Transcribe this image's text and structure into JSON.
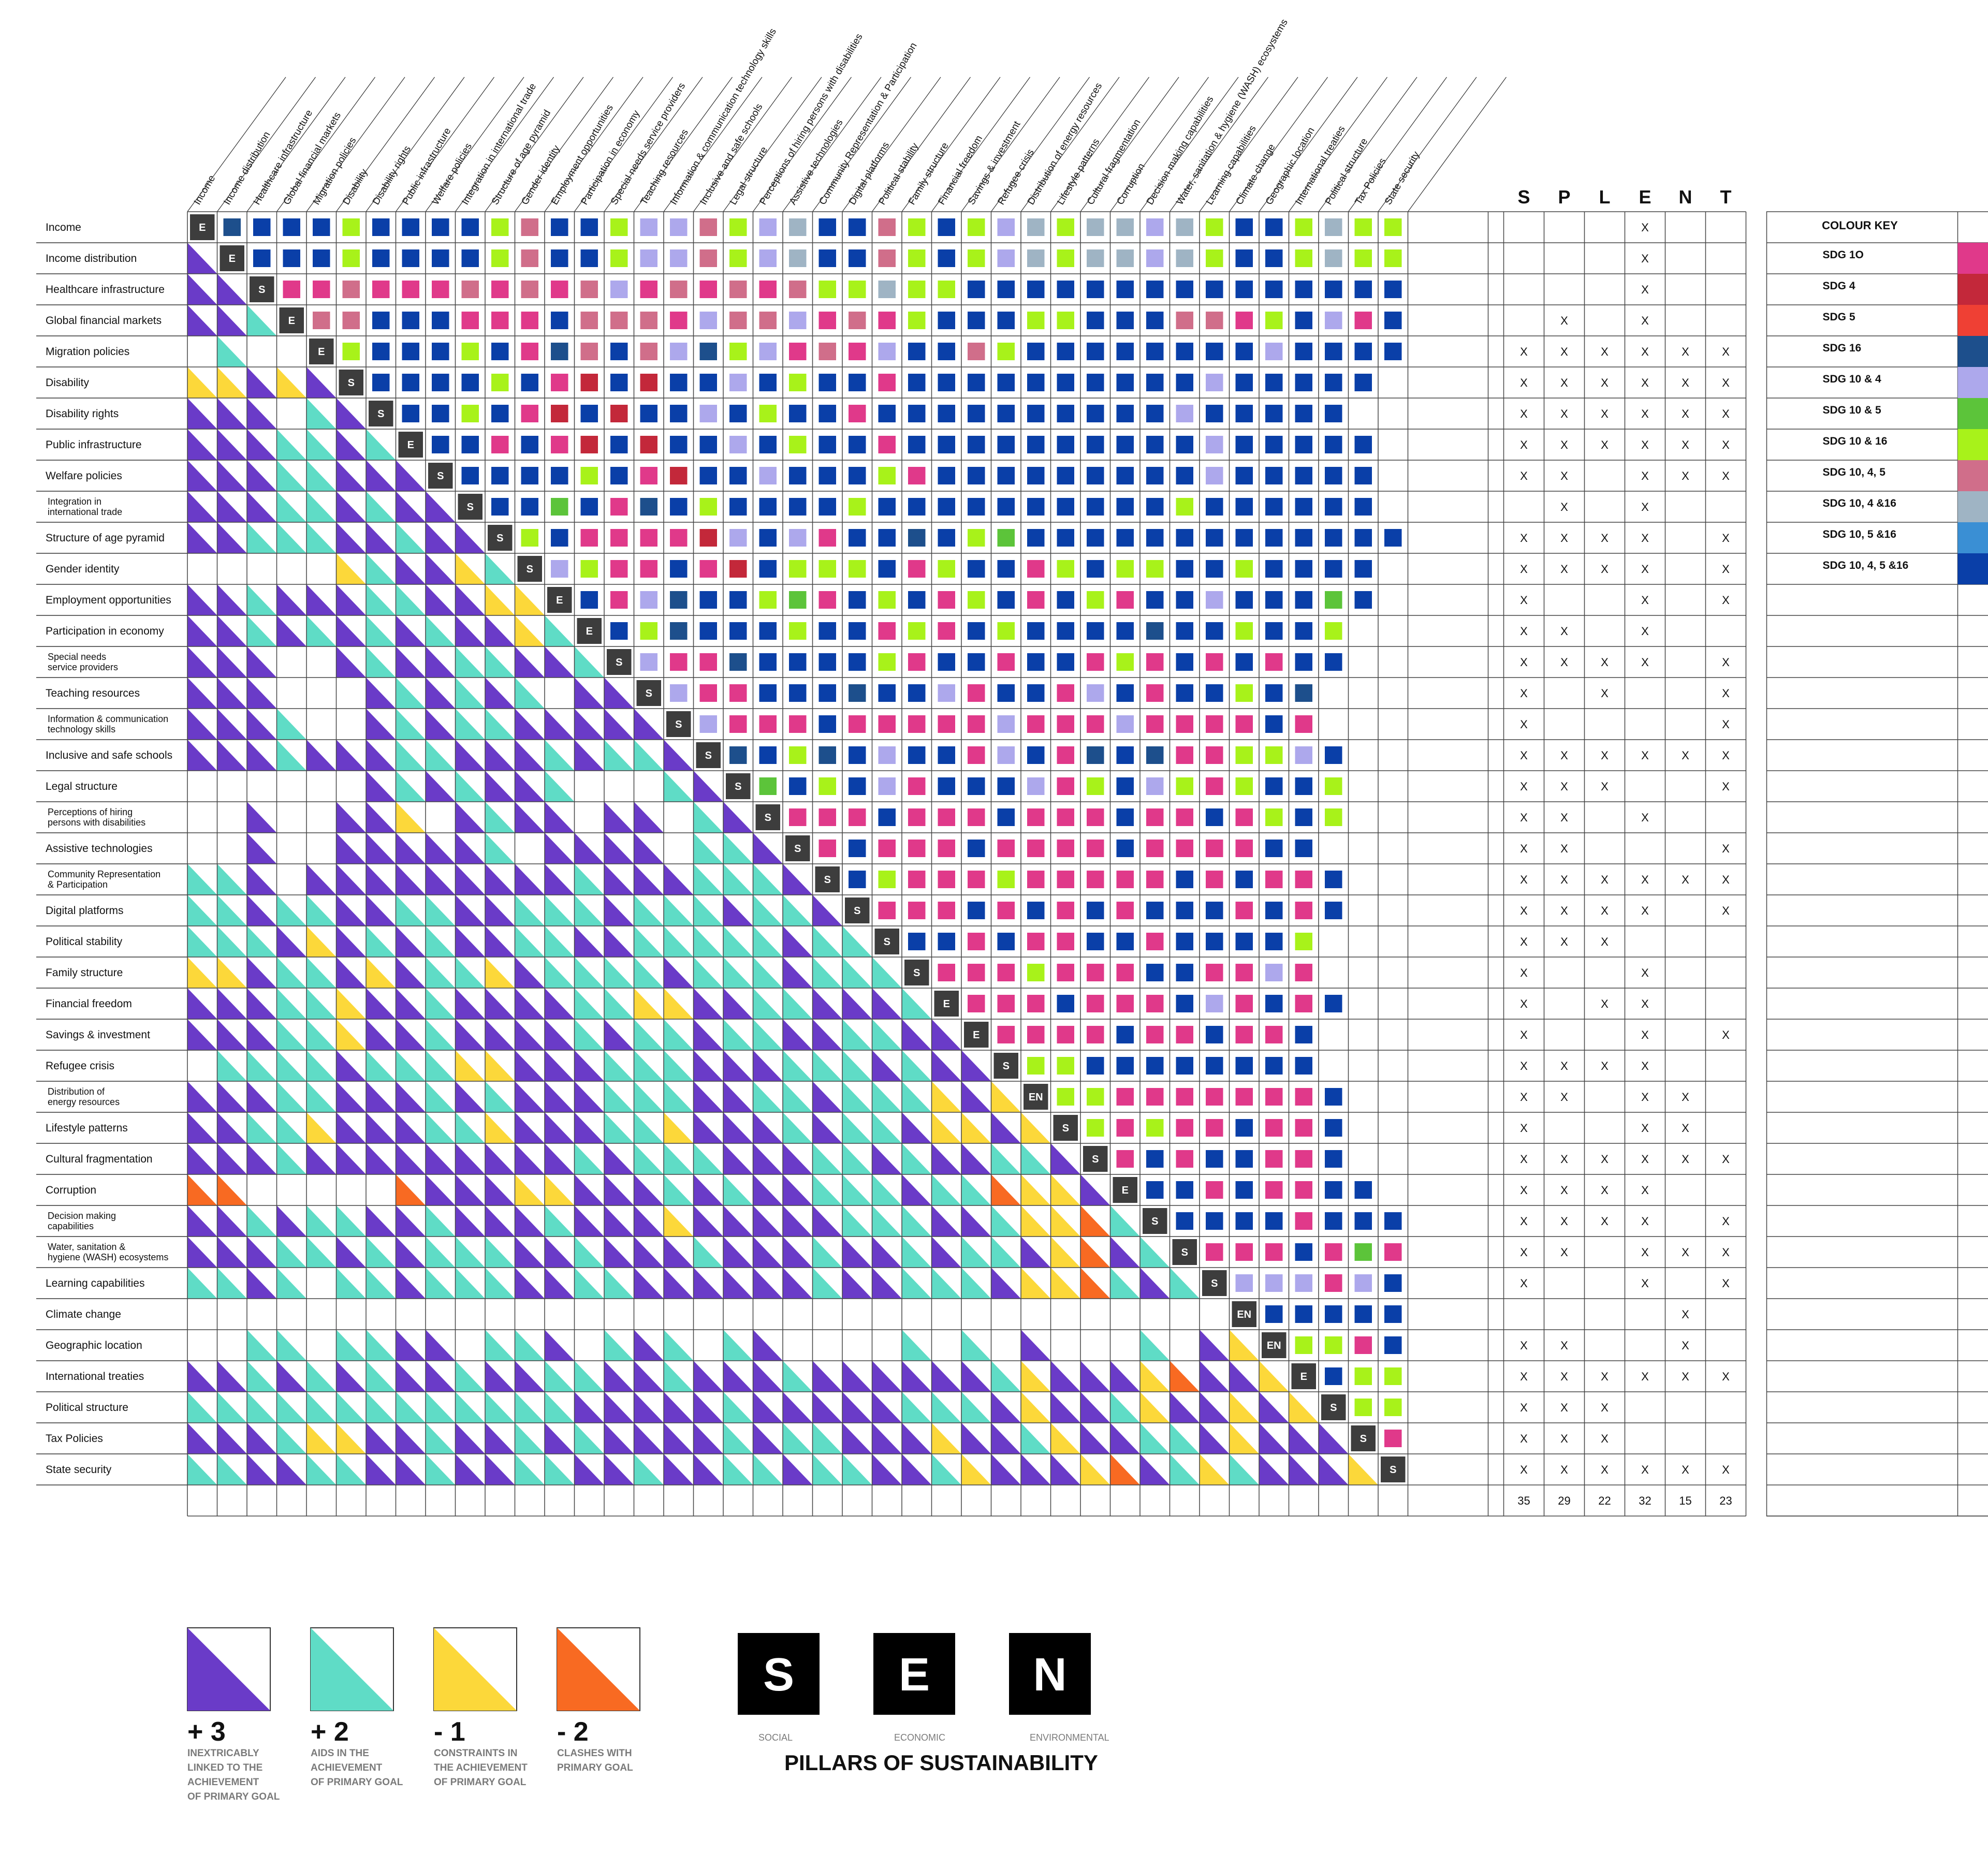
{
  "factors": [
    "Income",
    "Income distribution",
    "Healthcare infrastructure",
    "Global financial markets",
    "Migration policies",
    "Disability",
    "Disability rights",
    "Public infrastructure",
    "Welfare policies",
    "Integration in international trade",
    "Structure of age pyramid",
    "Gender identity",
    "Employment opportunities",
    "Participation in economy",
    "Special needs service providers",
    "Teaching resources",
    "Information & communication technology skills",
    "Inclusive and safe schools",
    "Legal structure",
    "Perceptions of hiring persons with disabilities",
    "Assistive technologies",
    "Community Representation & Participation",
    "Digital platforms",
    "Political stability",
    "Family structure",
    "Financial freedom",
    "Savings & investment",
    "Refugee crisis",
    "Distribution of energy resources",
    "Lifestyle patterns",
    "Cultural fragmentation",
    "Corruption",
    "Decision making capabilities",
    "Water, sanitation & hygiene (WASH) ecosystems",
    "Learning capabilities",
    "Climate change",
    "Geographic location",
    "International treaties",
    "Political structure",
    "Tax Policies",
    "State security"
  ],
  "pillars_per_factor": [
    "E",
    "E",
    "S",
    "E",
    "E",
    "S",
    "S",
    "E",
    "S",
    "S",
    "S",
    "S",
    "E",
    "E",
    "S",
    "S",
    "S",
    "S",
    "S",
    "S",
    "S",
    "S",
    "S",
    "S",
    "S",
    "E",
    "E",
    "S",
    "EN",
    "S",
    "S",
    "E",
    "S",
    "S",
    "S",
    "EN",
    "EN",
    "E",
    "S",
    "S",
    "S"
  ],
  "splent": {
    "headers": [
      "S",
      "P",
      "L",
      "E",
      "N",
      "T"
    ],
    "rows": [
      [
        "",
        "",
        "",
        "X",
        "",
        ""
      ],
      [
        "",
        "",
        "",
        "X",
        "",
        ""
      ],
      [
        "",
        "",
        "",
        "X",
        "",
        ""
      ],
      [
        "",
        "X",
        "",
        "X",
        "",
        ""
      ],
      [
        "X",
        "X",
        "X",
        "X",
        "X",
        "X"
      ],
      [
        "X",
        "X",
        "X",
        "X",
        "X",
        "X"
      ],
      [
        "X",
        "X",
        "X",
        "X",
        "X",
        "X"
      ],
      [
        "X",
        "X",
        "X",
        "X",
        "X",
        "X"
      ],
      [
        "X",
        "X",
        "",
        "X",
        "X",
        "X"
      ],
      [
        "",
        "X",
        "",
        "X",
        "",
        ""
      ],
      [
        "X",
        "X",
        "X",
        "X",
        "",
        "X"
      ],
      [
        "X",
        "X",
        "X",
        "X",
        "",
        "X"
      ],
      [
        "X",
        "",
        "",
        "X",
        "",
        "X"
      ],
      [
        "X",
        "X",
        "",
        "X",
        "",
        ""
      ],
      [
        "X",
        "X",
        "X",
        "X",
        "",
        "X"
      ],
      [
        "X",
        "",
        "X",
        "",
        "",
        "X"
      ],
      [
        "X",
        "",
        "",
        "",
        "",
        "X"
      ],
      [
        "X",
        "X",
        "X",
        "X",
        "X",
        "X"
      ],
      [
        "X",
        "X",
        "X",
        "",
        "",
        "X"
      ],
      [
        "X",
        "X",
        "",
        "X",
        "",
        ""
      ],
      [
        "X",
        "X",
        "",
        "",
        "",
        "X"
      ],
      [
        "X",
        "X",
        "X",
        "X",
        "X",
        "X"
      ],
      [
        "X",
        "X",
        "X",
        "X",
        "",
        "X"
      ],
      [
        "X",
        "X",
        "X",
        "",
        "",
        ""
      ],
      [
        "X",
        "",
        "",
        "X",
        "",
        ""
      ],
      [
        "X",
        "",
        "X",
        "X",
        "",
        ""
      ],
      [
        "X",
        "",
        "",
        "X",
        "",
        "X"
      ],
      [
        "X",
        "X",
        "X",
        "X",
        "",
        ""
      ],
      [
        "X",
        "X",
        "",
        "X",
        "X",
        ""
      ],
      [
        "X",
        "",
        "",
        "X",
        "X",
        ""
      ],
      [
        "X",
        "X",
        "X",
        "X",
        "X",
        "X"
      ],
      [
        "X",
        "X",
        "X",
        "X",
        "",
        ""
      ],
      [
        "X",
        "X",
        "X",
        "X",
        "",
        "X"
      ],
      [
        "X",
        "X",
        "",
        "X",
        "X",
        "X"
      ],
      [
        "X",
        "",
        "",
        "X",
        "",
        "X"
      ],
      [
        "",
        "",
        "",
        "",
        "X",
        ""
      ],
      [
        "X",
        "X",
        "",
        "",
        "X",
        ""
      ],
      [
        "X",
        "X",
        "X",
        "X",
        "X",
        "X"
      ],
      [
        "X",
        "X",
        "X",
        "",
        "",
        ""
      ],
      [
        "X",
        "X",
        "X",
        "",
        "",
        ""
      ],
      [
        "X",
        "X",
        "X",
        "X",
        "X",
        "X"
      ]
    ],
    "totals": [
      "35",
      "29",
      "22",
      "32",
      "15",
      "23"
    ]
  },
  "colour_key": {
    "title": "COLOUR KEY",
    "entries": [
      {
        "label": "SDG 1O",
        "color": "#e0398a"
      },
      {
        "label": "SDG 4",
        "color": "#c3283a"
      },
      {
        "label": "SDG 5",
        "color": "#ef4034"
      },
      {
        "label": "SDG 16",
        "color": "#1d4f8c"
      },
      {
        "label": "SDG 10 & 4",
        "color": "#ada8ec"
      },
      {
        "label": "SDG 10 & 5",
        "color": "#5cc43a"
      },
      {
        "label": "SDG 10 & 16",
        "color": "#a8f21a"
      },
      {
        "label": "SDG 10, 4, 5",
        "color": "#d06e8a"
      },
      {
        "label": "SDG 10, 4 &16",
        "color": "#9fb4c4"
      },
      {
        "label": "SDG 10, 5 &16",
        "color": "#3a8fd4"
      },
      {
        "label": "SDG 10, 4, 5 &16",
        "color": "#0a3fa8"
      }
    ]
  },
  "extra_colors": {
    "light_pink": "#f7c8dc",
    "pillar_box": "#3d3d3d"
  },
  "impact_legend": [
    {
      "value": "+ 3",
      "text": [
        "INEXTRICABLY",
        "LINKED TO THE",
        "ACHIEVEMENT",
        "OF PRIMARY GOAL"
      ],
      "color": "#6a3bc8"
    },
    {
      "value": "+ 2",
      "text": [
        "AIDS IN THE",
        "ACHIEVEMENT",
        "OF PRIMARY GOAL"
      ],
      "color": "#5fdcc6"
    },
    {
      "value": "- 1",
      "text": [
        "CONSTRAINTS IN",
        "THE  ACHIEVEMENT",
        "OF PRIMARY GOAL"
      ],
      "color": "#fcd83a"
    },
    {
      "value": "- 2",
      "text": [
        "CLASHES WITH",
        "PRIMARY GOAL"
      ],
      "color": "#f86a22"
    }
  ],
  "pillars_legend": {
    "title": "PILLARS OF SUSTAINABILITY",
    "items": [
      {
        "letter": "S",
        "label": "SOCIAL"
      },
      {
        "letter": "E",
        "label": "ECONOMIC"
      },
      {
        "letter": "N",
        "label": "ENVIRONMENTAL"
      }
    ]
  },
  "upper_matrix": [
    "KBBBGBBBBGPBBGLLPGLSBBPGBGLSGSSLSGBBGSGG",
    "BBBGBBBBGPBBGLLPGLSBBPGBGLSGSSLSGBBGSGG",
    "MMPMMMPMPMPLMPMPMPGGSGGBBBBBBBBBBBBBBB",
    "PPBBBMMMBPPPMLPPLMPMGBBBGGBBBPPMGBLMBBB",
    "GBBBGBMKPBPLKGLMPMLBBPGBBBBBBBBLBBBB",
    "BBBBGBMRBRBBLBGBBMBBBBBBBBBBLBBBBB",
    "BBGBMRBRBBLBGBBMBBBBBBBBBBLBBBBB",
    "BBMBMRBRBBLBGBBMBBBBBBBBBBLBBBBB",
    "BBBBGBMRBBLBBBGMBBBBBBBBBLBBBBB",
    "BBTBMKBGBBBBGBBBBBBBBBBGBBBBBB",
    "GBMMMMRLBLMBBKBGTBBBBBBBBBBBBB",
    "LGMMBMRBGGGBMGBBMGBGGBBGBBBB",
    "BMLKBBGTMBGBMGBMBGMBBLBBBTB",
    "BGKBBBGBBMGMBGBBBBKBBGBBG",
    "LMMKBBBBGMBBMBBMGMBMBMBB",
    "LMMBBBKBBLMBBMLBMBBGBK",
    "LMMMBMMMMMLMMMLMMMMBM",
    "KBGKBLBBMLBMKBKMMGGLB",
    "TBGBLMBBBLMGBLGMGBBG",
    "MMMBMMMBMMMBMMBMGBG",
    "MBMMMBMMMMBMMMMBB",
    "BGMMMGMMMMMBMBMMB",
    "MMMBMBMBMBBBMBMB",
    "BBMBMMBBMBBBBG",
    "MMMGMMMBBMMLM",
    "MMMBMMMBLMBMB",
    "MMMMBMMBMMB",
    "GGBBBBBBBB",
    "GGMMMMMMMB",
    "GMGMMBMMB",
    "MBMBBMMB",
    "BBMBMMBB",
    "BBBBMBBB",
    "MMMBMTM",
    "LLLMLB",
    "BBBBB",
    "GGMB",
    "BGG",
    "GG",
    "M",
    ""
  ],
  "lower_matrix": [
    "",
    "P",
    "PP",
    "PPT",
    "_T__",
    "YYPYP",
    "PPP_TP",
    "PPPTTPT",
    "PPPTTPPP",
    "PPPTTPTPP",
    "PPTTTPPTPP",
    "_____YTPPYT",
    "PPTPPPTTPPYY",
    "PPTPTPTPTPPYT",
    "PPP__PTPPTTPPT",
    "PPP___PTPTPT_PP",
    "PPPT__PTPTTPPPPP",
    "PPPTPPPTTPPPTPTTP",
    "______PTPTPPT___TP",
    "__P__PPY_PTPP_PP_TP",
    "__P__PPPPPT_PPPP_TTP",
    "TTP_PPPPPPPPPTPPPTTTP",
    "TTPTTPPTTPPTTTPTTTPTTP",
    "TTTPYPTPTPPTTPPTTTTTPTT",
    "YYPTTPYPTTYPTTTTPTTTPTTT",
    "PPPTTYPPTPPPPTTYYPPTTPPPT",
    "PPPTTYPPTPPPPTPTTPTTPPTTPP",
    "_TTTTPTTTYYPPPTTTPPPTTTPTPP",
    "PPPTTPPPTPTPPPTTTPPTTPTTTYPY",
    "PPTTYPPPTTYPPPTTYPPPTPTTPYYPY",
    "PPPTPPPPPPPPPTPTTTPPPTTPTPPTTP",
    "OO_____OPPPYYPPPTPTPPTTTPTTOYYP",
    "PPTPTTPPTPPPTPPPYPPPPPTTTPPTYYOT",
    "PPPTTPTPTTTPPTPPPTPPPTPPTPTTPYOPT",
    "TTPT_TTPTTTPPTTPPPPPPTPPTTTPYYOTPT",
    "___________________________________",
    "__TT_TTPP_TTP_TPT_TP____T_T_P___T_PY",
    "PPTPTPTPPTPPTTPPTPPPTPPPPPPTYPPPYOPPY",
    "TTTTTTTTTTTTTPPPPPTPPPPPTTTPYPPTYPPYPY",
    "PPPTYYPPTPPTPTPPPPTPTTPPPYPPTYPPTTPYPPP",
    "TTPPTTPPTPPTTPPTPPTTPTTPPTYPPPYOPTYTPPPY"
  ]
}
